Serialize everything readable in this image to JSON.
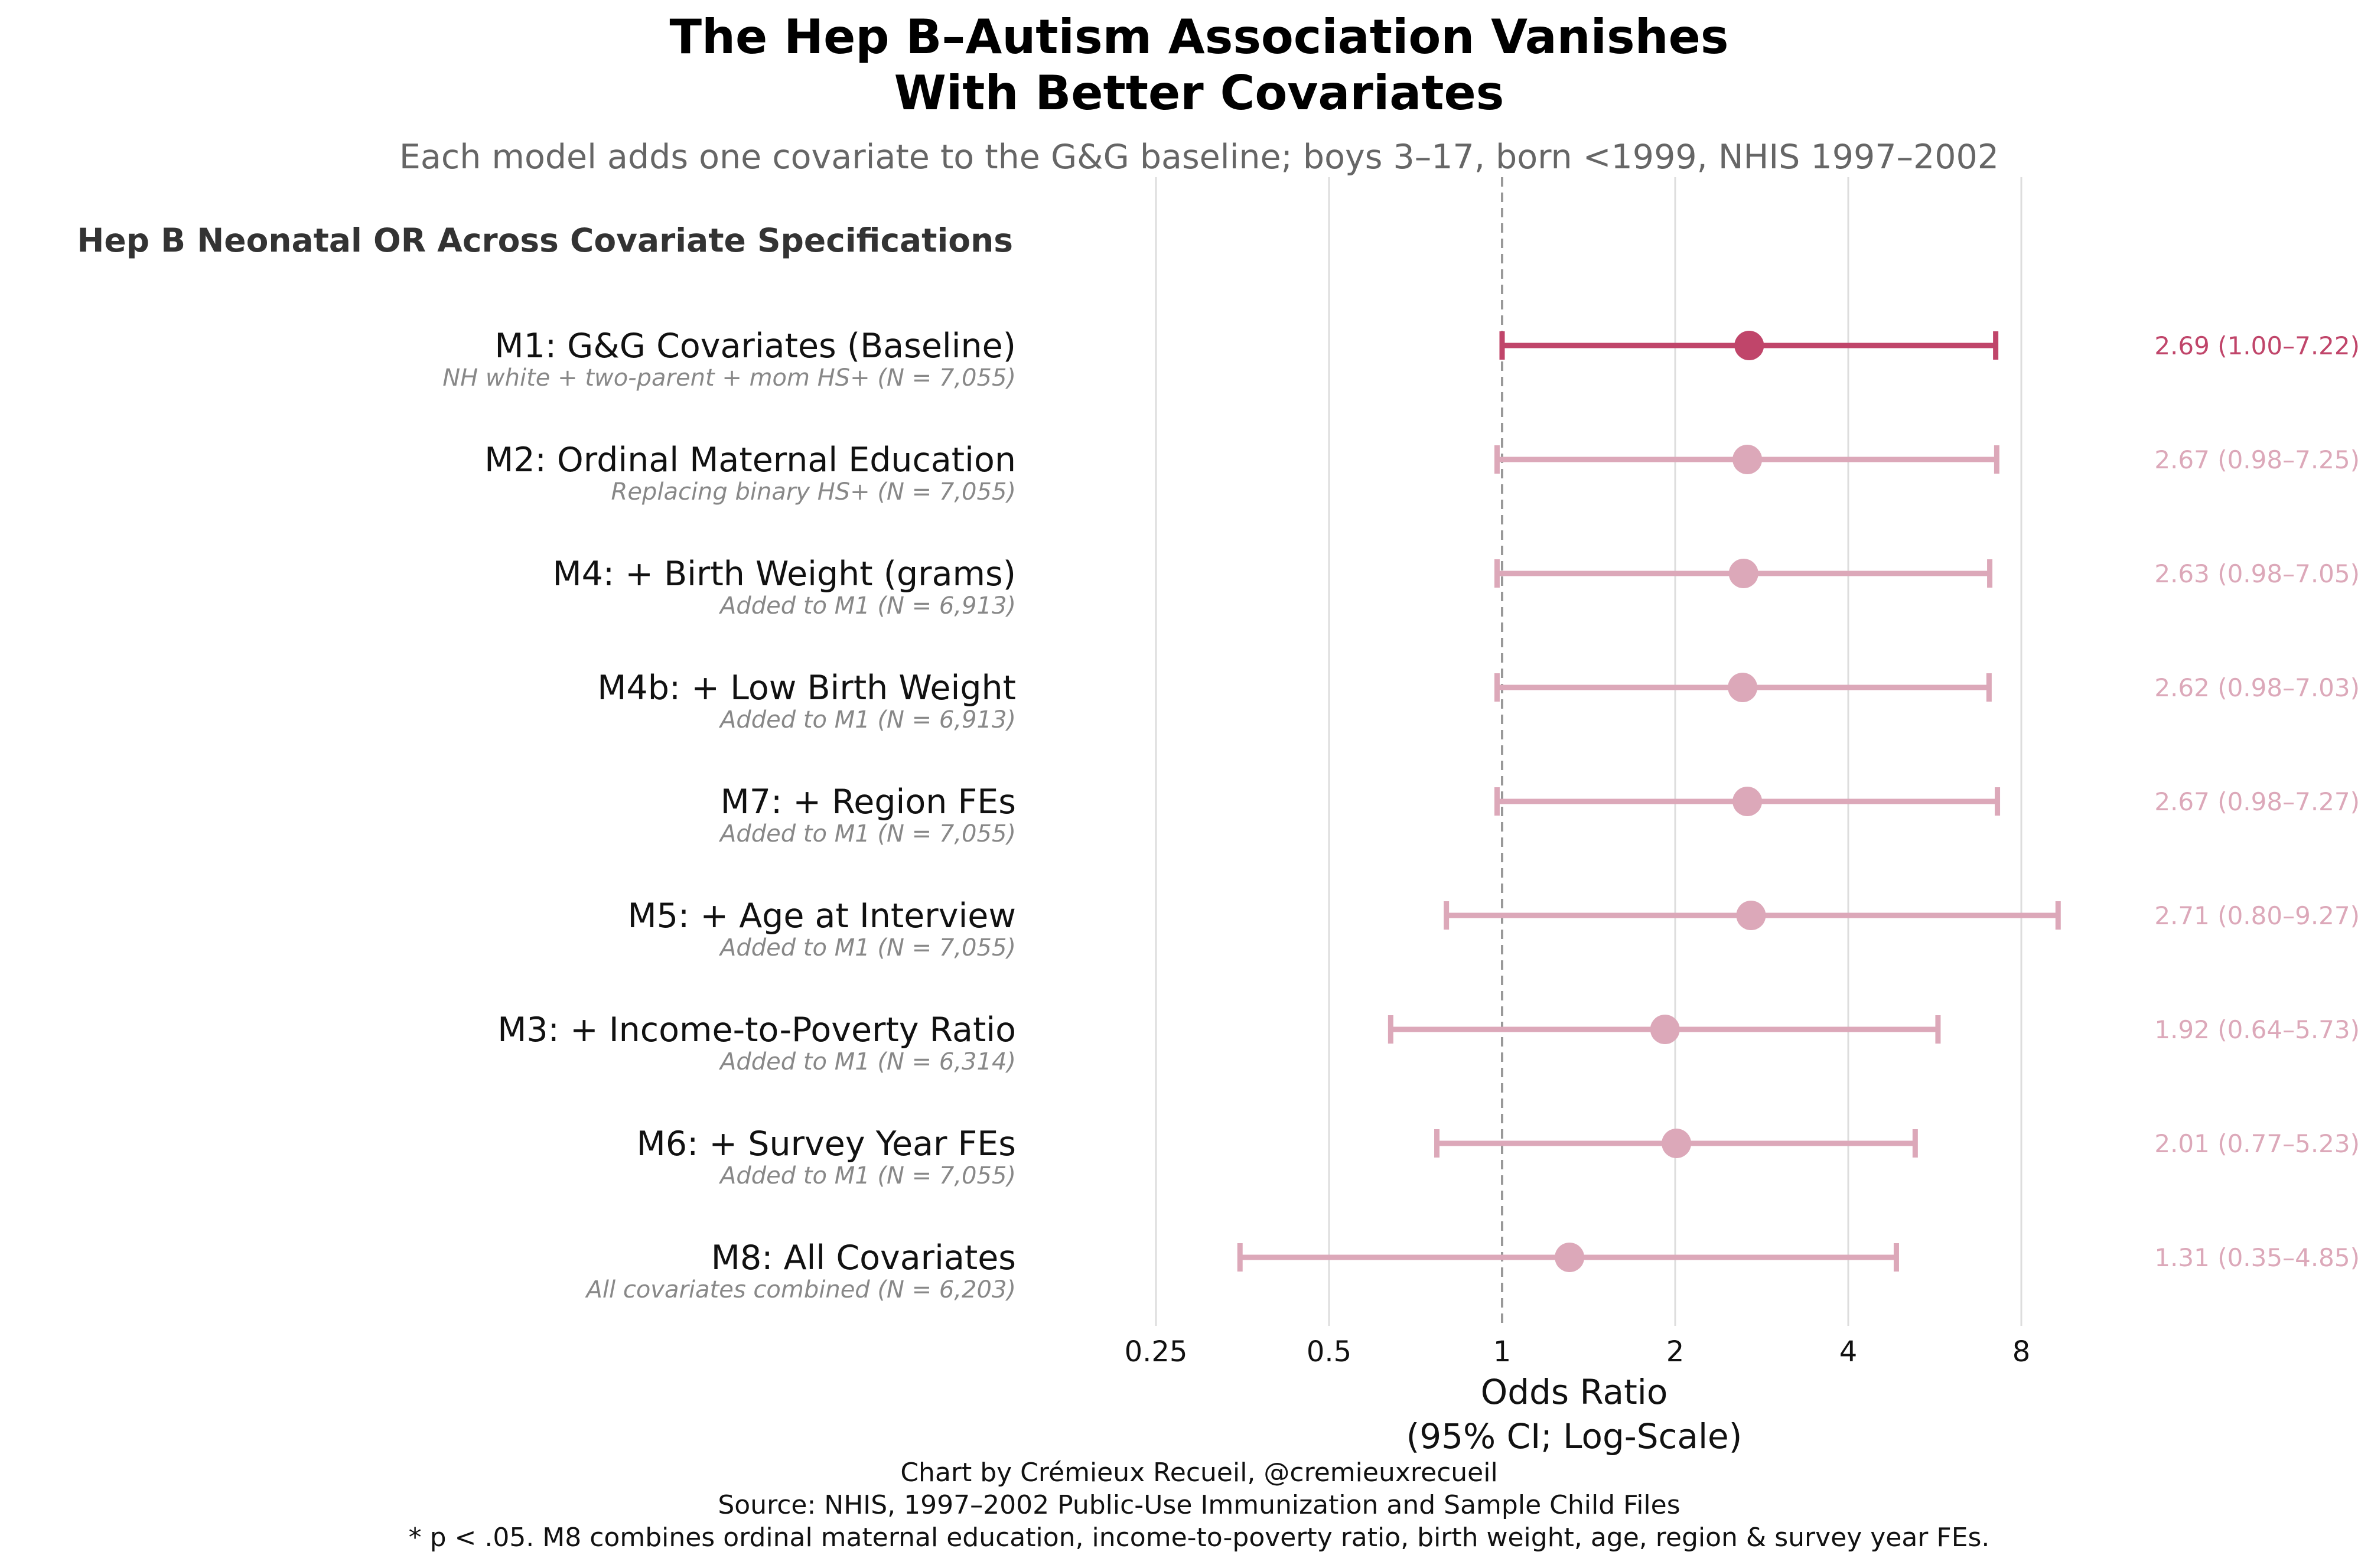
{
  "chart_data": {
    "type": "forest",
    "title_lines": [
      "The Hep B–Autism Association Vanishes",
      "With Better Covariates"
    ],
    "subtitle": "Each model adds one covariate to the G&G baseline; boys 3–17, born <1999, NHIS 1997–2002",
    "panel_title": "Hep B Neonatal OR Across Covariate Specifications",
    "xlabel_lines": [
      "Odds Ratio",
      "(95% CI; Log-Scale)"
    ],
    "x_scale": "log2",
    "xlim": [
      0.25,
      12
    ],
    "x_ticks": [
      0.25,
      0.5,
      1,
      2,
      4,
      8
    ],
    "x_tick_labels": [
      "0.25",
      "0.5",
      "1",
      "2",
      "4",
      "8"
    ],
    "reference_line": 1,
    "colors": {
      "highlight": "#c0456a",
      "muted": "#dca8b9",
      "reference": "#999999",
      "grid": "#dddddd"
    },
    "rows": [
      {
        "label": "M1: G&G Covariates (Baseline)",
        "sublabel": "NH white + two-parent + mom HS+ (N = 7,055)",
        "or": 2.69,
        "lo": 1.0,
        "hi": 7.22,
        "ci_text": "2.69 (1.00–7.22)",
        "highlight": true
      },
      {
        "label": "M2: Ordinal Maternal Education",
        "sublabel": "Replacing binary HS+ (N = 7,055)",
        "or": 2.67,
        "lo": 0.98,
        "hi": 7.25,
        "ci_text": "2.67 (0.98–7.25)",
        "highlight": false
      },
      {
        "label": "M4: + Birth Weight (grams)",
        "sublabel": "Added to M1 (N = 6,913)",
        "or": 2.63,
        "lo": 0.98,
        "hi": 7.05,
        "ci_text": "2.63 (0.98–7.05)",
        "highlight": false
      },
      {
        "label": "M4b: + Low Birth Weight",
        "sublabel": "Added to M1 (N = 6,913)",
        "or": 2.62,
        "lo": 0.98,
        "hi": 7.03,
        "ci_text": "2.62 (0.98–7.03)",
        "highlight": false
      },
      {
        "label": "M7: + Region FEs",
        "sublabel": "Added to M1 (N = 7,055)",
        "or": 2.67,
        "lo": 0.98,
        "hi": 7.27,
        "ci_text": "2.67 (0.98–7.27)",
        "highlight": false
      },
      {
        "label": "M5: + Age at Interview",
        "sublabel": "Added to M1 (N = 7,055)",
        "or": 2.71,
        "lo": 0.8,
        "hi": 9.27,
        "ci_text": "2.71 (0.80–9.27)",
        "highlight": false
      },
      {
        "label": "M3: + Income-to-Poverty Ratio",
        "sublabel": "Added to M1 (N = 6,314)",
        "or": 1.92,
        "lo": 0.64,
        "hi": 5.73,
        "ci_text": "1.92 (0.64–5.73)",
        "highlight": false
      },
      {
        "label": "M6: + Survey Year FEs",
        "sublabel": "Added to M1 (N = 7,055)",
        "or": 2.01,
        "lo": 0.77,
        "hi": 5.23,
        "ci_text": "2.01 (0.77–5.23)",
        "highlight": false
      },
      {
        "label": "M8: All Covariates",
        "sublabel": "All covariates combined (N = 6,203)",
        "or": 1.31,
        "lo": 0.35,
        "hi": 4.85,
        "ci_text": "1.31 (0.35–4.85)",
        "highlight": false
      }
    ]
  },
  "footer": {
    "line1": "Chart by Crémieux Recueil, @cremieuxrecueil",
    "line2": "Source: NHIS, 1997–2002 Public-Use Immunization and Sample Child Files",
    "line3": "* p < .05. M8 combines ordinal maternal education, income-to-poverty ratio, birth weight, age, region & survey year FEs."
  }
}
